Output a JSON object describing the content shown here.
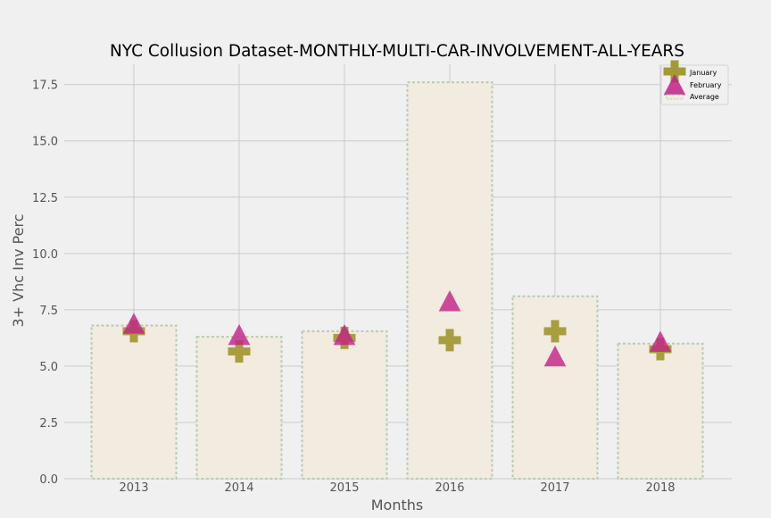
{
  "chart_data": {
    "type": "bar",
    "title": "NYC Collusion Dataset-MONTHLY-MULTI-CAR-INVOLVEMENT-ALL-YEARS",
    "xlabel": "Months",
    "ylabel": "3+ Vhc Inv Perc",
    "categories": [
      "2013",
      "2014",
      "2015",
      "2016",
      "2017",
      "2018"
    ],
    "ylim": [
      0,
      18.4
    ],
    "yticks": [
      0.0,
      2.5,
      5.0,
      7.5,
      10.0,
      12.5,
      15.0,
      17.5
    ],
    "ytick_labels": [
      "0.0",
      "2.5",
      "5.0",
      "7.5",
      "10.0",
      "12.5",
      "15.0",
      "17.5"
    ],
    "grid": true,
    "legend_position": "top-right",
    "series": [
      {
        "name": "January",
        "kind": "scatter",
        "marker": "plus",
        "color": "#a39a36",
        "values": [
          6.55,
          5.65,
          6.25,
          6.15,
          6.55,
          5.75
        ]
      },
      {
        "name": "February",
        "kind": "scatter",
        "marker": "triangle",
        "color": "#c22087",
        "values": [
          6.85,
          6.35,
          6.35,
          7.85,
          5.4,
          6.05
        ]
      },
      {
        "name": "Average",
        "kind": "bar",
        "fill": "#f2ebe0",
        "edge": "#b8cbb0",
        "values": [
          6.8,
          6.3,
          6.55,
          17.6,
          8.1,
          6.0
        ]
      }
    ]
  }
}
